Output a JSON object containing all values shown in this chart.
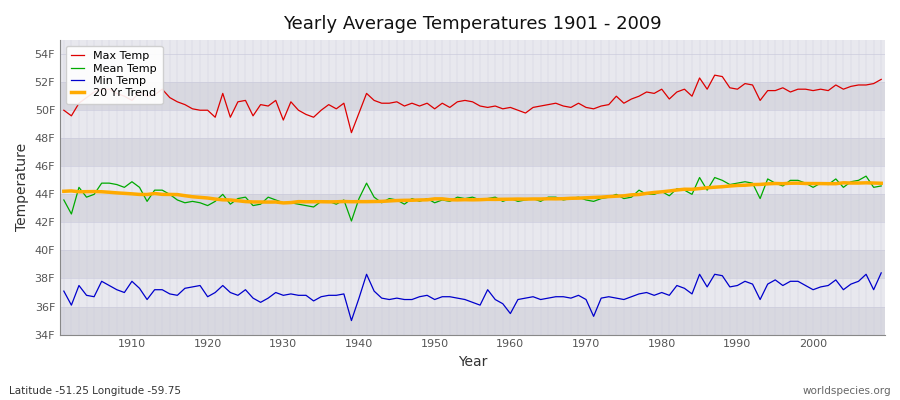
{
  "title": "Yearly Average Temperatures 1901 - 2009",
  "xlabel": "Year",
  "ylabel": "Temperature",
  "subtitle_left": "Latitude -51.25 Longitude -59.75",
  "subtitle_right": "worldspecies.org",
  "year_start": 1901,
  "year_end": 2009,
  "ylim": [
    34,
    55
  ],
  "yticks": [
    34,
    36,
    38,
    40,
    42,
    44,
    46,
    48,
    50,
    52,
    54
  ],
  "ytick_labels": [
    "34F",
    "36F",
    "38F",
    "40F",
    "42F",
    "44F",
    "46F",
    "48F",
    "50F",
    "52F",
    "54F"
  ],
  "figure_bg_color": "#ffffff",
  "plot_bg_color": "#e8e8ee",
  "band_color_dark": "#d8d8e0",
  "band_color_light": "#e8e8ee",
  "grid_color": "#ccccdd",
  "max_temp_color": "#dd0000",
  "mean_temp_color": "#00aa00",
  "min_temp_color": "#0000cc",
  "trend_color": "#ffaa00",
  "legend_labels": [
    "Max Temp",
    "Mean Temp",
    "Min Temp",
    "20 Yr Trend"
  ],
  "max_temp": [
    50.0,
    49.6,
    50.5,
    50.9,
    51.3,
    51.5,
    51.5,
    51.2,
    51.0,
    50.7,
    51.3,
    51.0,
    51.1,
    51.5,
    50.9,
    50.6,
    50.4,
    50.1,
    50.0,
    50.0,
    49.5,
    51.2,
    49.5,
    50.6,
    50.7,
    49.6,
    50.4,
    50.3,
    50.7,
    49.3,
    50.6,
    50.0,
    49.7,
    49.5,
    50.0,
    50.4,
    50.1,
    50.5,
    48.4,
    49.8,
    51.2,
    50.7,
    50.5,
    50.5,
    50.6,
    50.3,
    50.5,
    50.3,
    50.5,
    50.1,
    50.5,
    50.2,
    50.6,
    50.7,
    50.6,
    50.3,
    50.2,
    50.3,
    50.1,
    50.2,
    50.0,
    49.8,
    50.2,
    50.3,
    50.4,
    50.5,
    50.3,
    50.2,
    50.5,
    50.2,
    50.1,
    50.3,
    50.4,
    51.0,
    50.5,
    50.8,
    51.0,
    51.3,
    51.2,
    51.5,
    50.8,
    51.3,
    51.5,
    51.0,
    52.3,
    51.5,
    52.5,
    52.4,
    51.6,
    51.5,
    51.9,
    51.8,
    50.7,
    51.4,
    51.4,
    51.6,
    51.3,
    51.5,
    51.5,
    51.4,
    51.5,
    51.4,
    51.8,
    51.5,
    51.7,
    51.8,
    51.8,
    51.9,
    52.2
  ],
  "mean_temp": [
    43.6,
    42.6,
    44.5,
    43.8,
    44.0,
    44.8,
    44.8,
    44.7,
    44.5,
    44.9,
    44.5,
    43.5,
    44.3,
    44.3,
    44.0,
    43.6,
    43.4,
    43.5,
    43.4,
    43.2,
    43.5,
    44.0,
    43.3,
    43.7,
    43.8,
    43.2,
    43.3,
    43.8,
    43.6,
    43.4,
    43.4,
    43.3,
    43.2,
    43.1,
    43.5,
    43.5,
    43.3,
    43.6,
    42.1,
    43.7,
    44.8,
    43.8,
    43.4,
    43.7,
    43.6,
    43.3,
    43.7,
    43.5,
    43.7,
    43.4,
    43.6,
    43.5,
    43.8,
    43.7,
    43.8,
    43.6,
    43.7,
    43.8,
    43.5,
    43.7,
    43.5,
    43.6,
    43.7,
    43.5,
    43.8,
    43.8,
    43.6,
    43.7,
    43.8,
    43.6,
    43.5,
    43.7,
    43.8,
    44.0,
    43.7,
    43.8,
    44.3,
    44.0,
    44.0,
    44.2,
    43.9,
    44.4,
    44.3,
    44.0,
    45.2,
    44.3,
    45.2,
    45.0,
    44.7,
    44.8,
    44.9,
    44.8,
    43.7,
    45.1,
    44.8,
    44.6,
    45.0,
    45.0,
    44.8,
    44.5,
    44.8,
    44.7,
    45.1,
    44.5,
    44.9,
    45.0,
    45.3,
    44.5,
    44.6
  ],
  "min_temp": [
    37.1,
    36.1,
    37.5,
    36.8,
    36.7,
    37.8,
    37.5,
    37.2,
    37.0,
    37.8,
    37.3,
    36.5,
    37.2,
    37.2,
    36.9,
    36.8,
    37.3,
    37.4,
    37.5,
    36.7,
    37.0,
    37.5,
    37.0,
    36.8,
    37.2,
    36.6,
    36.3,
    36.6,
    37.0,
    36.8,
    36.9,
    36.8,
    36.8,
    36.4,
    36.7,
    36.8,
    36.8,
    36.9,
    35.0,
    36.6,
    38.3,
    37.1,
    36.6,
    36.5,
    36.6,
    36.5,
    36.5,
    36.7,
    36.8,
    36.5,
    36.7,
    36.7,
    36.6,
    36.5,
    36.3,
    36.1,
    37.2,
    36.5,
    36.2,
    35.5,
    36.5,
    36.6,
    36.7,
    36.5,
    36.6,
    36.7,
    36.7,
    36.6,
    36.8,
    36.5,
    35.3,
    36.6,
    36.7,
    36.6,
    36.5,
    36.7,
    36.9,
    37.0,
    36.8,
    37.0,
    36.8,
    37.5,
    37.3,
    36.9,
    38.3,
    37.4,
    38.3,
    38.2,
    37.4,
    37.5,
    37.8,
    37.6,
    36.5,
    37.6,
    37.9,
    37.5,
    37.8,
    37.8,
    37.5,
    37.2,
    37.4,
    37.5,
    37.9,
    37.2,
    37.6,
    37.8,
    38.3,
    37.2,
    38.4
  ]
}
